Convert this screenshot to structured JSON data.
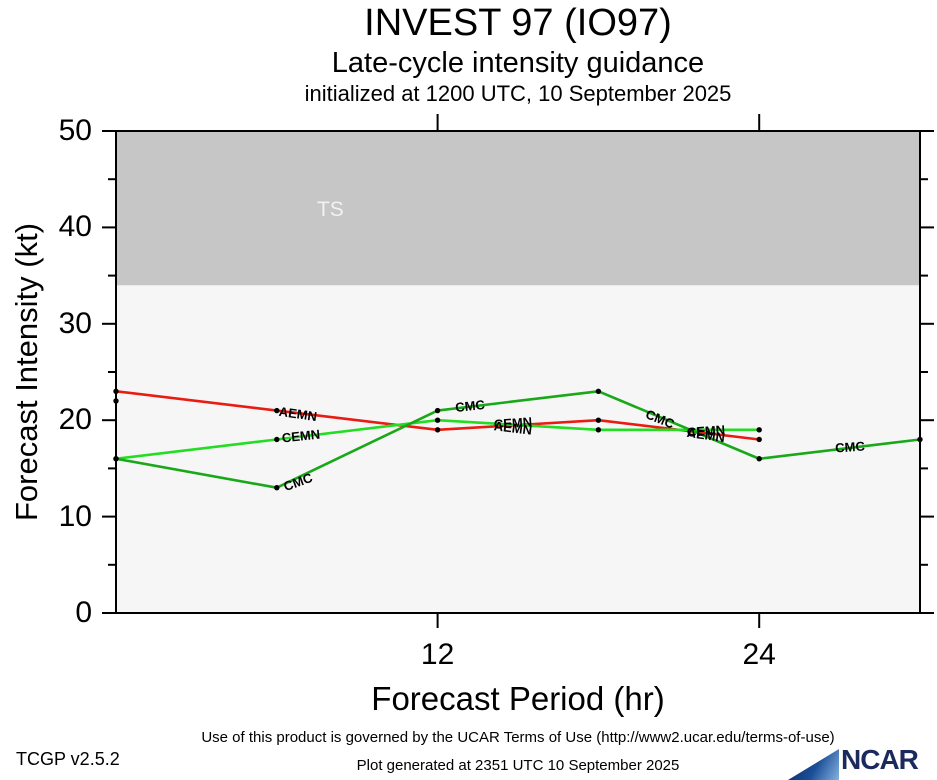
{
  "header": {
    "title": "INVEST 97 (IO97)",
    "subtitle": "Late-cycle intensity guidance",
    "initialization": "initialized at 1200 UTC, 10 September 2025"
  },
  "chart_data": {
    "type": "line",
    "title": "INVEST 97 (IO97)",
    "subtitle": "Late-cycle intensity guidance",
    "xlabel": "Forecast Period (hr)",
    "ylabel": "Forecast Intensity (kt)",
    "xlim": [
      0,
      30
    ],
    "ylim": [
      0,
      50
    ],
    "xticks": [
      12,
      24
    ],
    "yticks_major": [
      0,
      10,
      20,
      30,
      40,
      50
    ],
    "yticks_minor": [
      5,
      15,
      25,
      35,
      45
    ],
    "grid": false,
    "legend_position": "inline-line-labels",
    "plot_bg": "#f6f6f6",
    "threshold_band": {
      "label": "TS",
      "from": 34,
      "to": 50,
      "color": "#c6c6c6",
      "label_color": "#f2f2f2",
      "label_x": 8.0,
      "label_v": 41.8
    },
    "series": [
      {
        "name": "AEMN",
        "color": "#e81c13",
        "x": [
          0,
          6,
          12,
          18,
          24
        ],
        "values": [
          23,
          21,
          19,
          20,
          18
        ]
      },
      {
        "name": "CEMN",
        "color": "#22dd22",
        "x": [
          0,
          6,
          12,
          18,
          24
        ],
        "values": [
          16,
          18,
          20,
          19,
          19
        ]
      },
      {
        "name": "CMC",
        "color": "#18a818",
        "x": [
          0,
          6,
          12,
          18,
          24,
          30
        ],
        "values": [
          16,
          13,
          21,
          23,
          16,
          18
        ]
      }
    ],
    "extra_points": [
      {
        "x": 0,
        "value": 22
      }
    ],
    "marker_color": "#000000",
    "line_labels": [
      {
        "text": "AEMN",
        "x": 6.8,
        "v": 20.6,
        "rot": 8
      },
      {
        "text": "CEMN",
        "x": 6.9,
        "v": 18.4,
        "rot": -6
      },
      {
        "text": "CMC",
        "x": 6.8,
        "v": 13.6,
        "rot": -20
      },
      {
        "text": "CMC",
        "x": 13.2,
        "v": 21.5,
        "rot": -6
      },
      {
        "text": "CEMN",
        "x": 14.8,
        "v": 19.7,
        "rot": -4
      },
      {
        "text": "AEMN",
        "x": 14.8,
        "v": 19.2,
        "rot": 7
      },
      {
        "text": "CMC",
        "x": 20.3,
        "v": 20.1,
        "rot": 22
      },
      {
        "text": "CEMN",
        "x": 22.0,
        "v": 18.9,
        "rot": -4
      },
      {
        "text": "AEMN",
        "x": 22.0,
        "v": 18.5,
        "rot": 8
      },
      {
        "text": "CMC",
        "x": 27.4,
        "v": 17.2,
        "rot": -4
      }
    ]
  },
  "footer": {
    "terms": "Use of this product is governed by the UCAR Terms of Use (http://www2.ucar.edu/terms-of-use)",
    "version": "TCGP v2.5.2",
    "generated": "Plot generated at 2351 UTC   10 September 2025",
    "logo_text": "NCAR"
  }
}
